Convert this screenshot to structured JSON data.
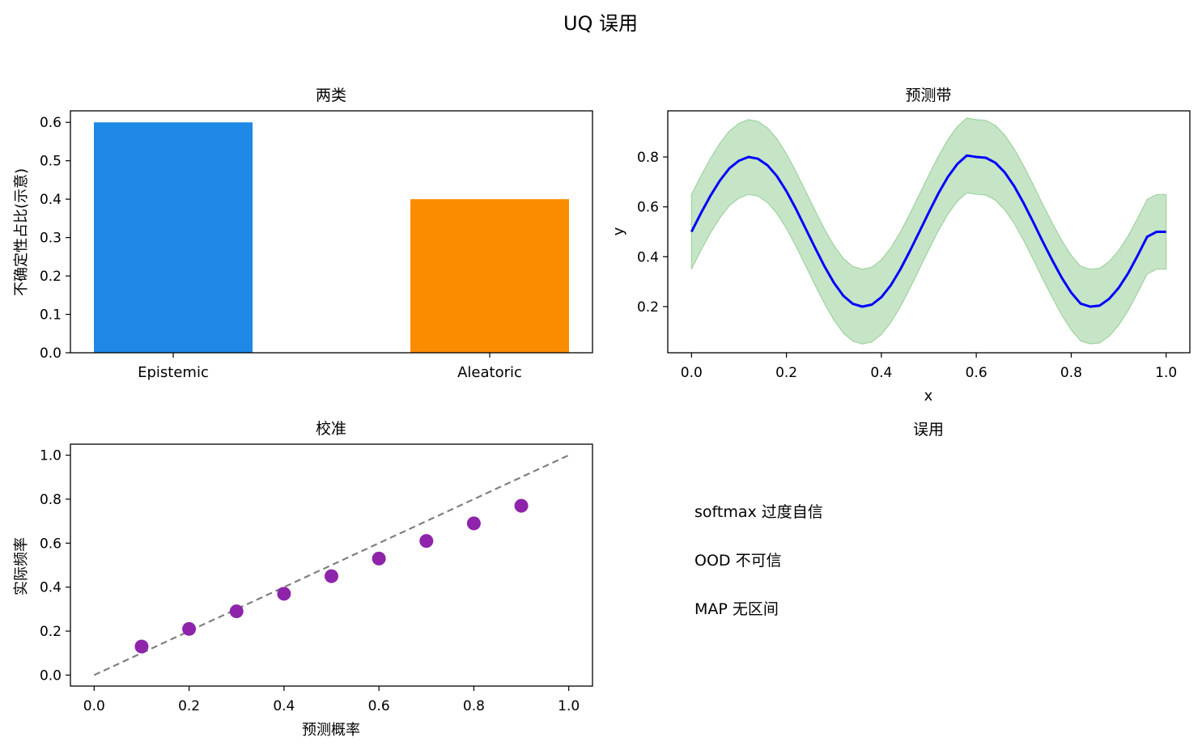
{
  "figure_title": "UQ 误用",
  "chart_data": [
    {
      "type": "bar",
      "title": "两类",
      "xlabel": "",
      "ylabel": "不确定性占比(示意)",
      "categories": [
        "Epistemic",
        "Aleatoric"
      ],
      "values": [
        0.6,
        0.4
      ],
      "colors": [
        "#1e88e5",
        "#fb8c00"
      ],
      "ylim": [
        0,
        0.63
      ],
      "yticks": [
        0.0,
        0.1,
        0.2,
        0.3,
        0.4,
        0.5,
        0.6
      ],
      "ytick_labels": [
        "0.0",
        "0.1",
        "0.2",
        "0.3",
        "0.4",
        "0.5",
        "0.6"
      ],
      "grid": false
    },
    {
      "type": "line",
      "title": "预测带",
      "xlabel": "x",
      "ylabel": "y",
      "series": [
        {
          "x": [
            0,
            0.02,
            0.04,
            0.06,
            0.08,
            0.1,
            0.12,
            0.14,
            0.16,
            0.18,
            0.2,
            0.22,
            0.24,
            0.26,
            0.28,
            0.3,
            0.32,
            0.34,
            0.36,
            0.38,
            0.4,
            0.42,
            0.44,
            0.46,
            0.48,
            0.5,
            0.52,
            0.54,
            0.56,
            0.58,
            0.6,
            0.62,
            0.64,
            0.66,
            0.68,
            0.7,
            0.72,
            0.74,
            0.76,
            0.78,
            0.8,
            0.82,
            0.84,
            0.86,
            0.88,
            0.9,
            0.92,
            0.94,
            0.96,
            0.98,
            1.0
          ],
          "y": [
            0.5,
            0.575,
            0.645,
            0.706,
            0.755,
            0.785,
            0.8,
            0.793,
            0.767,
            0.723,
            0.663,
            0.592,
            0.515,
            0.437,
            0.362,
            0.296,
            0.243,
            0.211,
            0.2,
            0.208,
            0.238,
            0.286,
            0.349,
            0.422,
            0.5,
            0.578,
            0.653,
            0.72,
            0.772,
            0.806,
            0.8,
            0.797,
            0.777,
            0.738,
            0.683,
            0.614,
            0.539,
            0.461,
            0.386,
            0.316,
            0.256,
            0.212,
            0.2,
            0.204,
            0.231,
            0.275,
            0.334,
            0.405,
            0.48,
            0.5,
            0.5
          ],
          "color": "#0000ff"
        }
      ],
      "band": {
        "halfwidth": 0.15,
        "color": "#2e9e2e",
        "alpha": 0.27
      },
      "xlim": [
        -0.05,
        1.05
      ],
      "ylim": [
        0.015,
        0.985
      ],
      "xticks": [
        0.0,
        0.2,
        0.4,
        0.6,
        0.8,
        1.0
      ],
      "xtick_labels": [
        "0.0",
        "0.2",
        "0.4",
        "0.6",
        "0.8",
        "1.0"
      ],
      "yticks": [
        0.2,
        0.4,
        0.6,
        0.8
      ],
      "ytick_labels": [
        "0.2",
        "0.4",
        "0.6",
        "0.8"
      ],
      "grid": false
    },
    {
      "type": "scatter",
      "title": "校准",
      "xlabel": "预测概率",
      "ylabel": "实际频率",
      "x": [
        0.1,
        0.2,
        0.3,
        0.4,
        0.5,
        0.6,
        0.7,
        0.8,
        0.9
      ],
      "y": [
        0.13,
        0.21,
        0.29,
        0.37,
        0.45,
        0.53,
        0.61,
        0.69,
        0.77
      ],
      "point_color": "#8e24aa",
      "reference_line": {
        "x": [
          0,
          1
        ],
        "y": [
          0,
          1
        ],
        "color": "#808080",
        "style": "dashed"
      },
      "xlim": [
        -0.05,
        1.05
      ],
      "ylim": [
        -0.05,
        1.05
      ],
      "xticks": [
        0.0,
        0.2,
        0.4,
        0.6,
        0.8,
        1.0
      ],
      "xtick_labels": [
        "0.0",
        "0.2",
        "0.4",
        "0.6",
        "0.8",
        "1.0"
      ],
      "yticks": [
        0.0,
        0.2,
        0.4,
        0.6,
        0.8,
        1.0
      ],
      "ytick_labels": [
        "0.0",
        "0.2",
        "0.4",
        "0.6",
        "0.8",
        "1.0"
      ],
      "grid": false
    },
    {
      "type": "text",
      "title": "误用",
      "lines": [
        "softmax 过度自信",
        "OOD 不可信",
        "MAP 无区间"
      ]
    }
  ]
}
